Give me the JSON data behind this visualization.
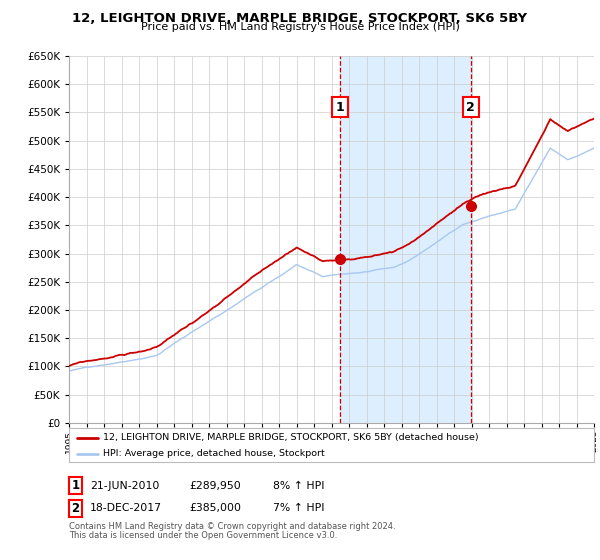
{
  "title": "12, LEIGHTON DRIVE, MARPLE BRIDGE, STOCKPORT, SK6 5BY",
  "subtitle": "Price paid vs. HM Land Registry's House Price Index (HPI)",
  "legend_entry1": "12, LEIGHTON DRIVE, MARPLE BRIDGE, STOCKPORT, SK6 5BY (detached house)",
  "legend_entry2": "HPI: Average price, detached house, Stockport",
  "sale1_date": "21-JUN-2010",
  "sale1_price": "£289,950",
  "sale1_hpi": "8% ↑ HPI",
  "sale2_date": "18-DEC-2017",
  "sale2_price": "£385,000",
  "sale2_hpi": "7% ↑ HPI",
  "sale1_year": 2010.47,
  "sale2_year": 2017.96,
  "sale1_value": 289950,
  "sale2_value": 385000,
  "footnote1": "Contains HM Land Registry data © Crown copyright and database right 2024.",
  "footnote2": "This data is licensed under the Open Government Licence v3.0.",
  "hpi_color": "#a8c8f0",
  "price_color": "#cc0000",
  "sale_dot_color": "#cc0000",
  "background_color": "#ffffff",
  "grid_color": "#cccccc",
  "shade_color": "#ddeeff",
  "ylim_min": 0,
  "ylim_max": 650000,
  "ytick_step": 50000,
  "xmin": 1995,
  "xmax": 2025
}
